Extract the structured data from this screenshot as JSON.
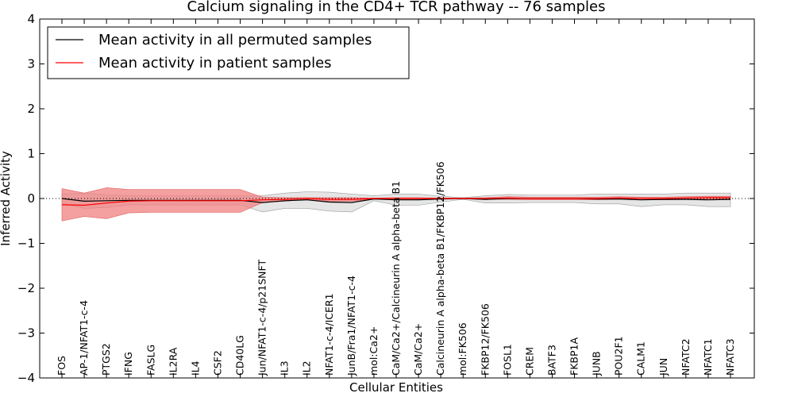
{
  "chart_data": {
    "type": "line",
    "title": "Calcium signaling in the CD4+ TCR pathway -- 76 samples",
    "xlabel": "Cellular Entities",
    "ylabel": "Inferred Activity",
    "ylim": [
      -4,
      4
    ],
    "yticks": [
      "−4",
      "−3",
      "−2",
      "−1",
      "0",
      "1",
      "2",
      "3",
      "4"
    ],
    "yticks_values": [
      -4,
      -3,
      -2,
      -1,
      0,
      1,
      2,
      3,
      4
    ],
    "legend_position": "top-left",
    "reference_line": 0,
    "categories": [
      "FOS",
      "AP-1/NFAT1-c-4",
      "PTGS2",
      "IFNG",
      "FASLG",
      "IL2RA",
      "IL4",
      "CSF2",
      "CD40LG",
      "Jun/NFAT1-c-4/p21SNFT",
      "IL3",
      "IL2",
      "NFAT1-c-4/ICER1",
      "JunB/Fra1/NFAT1-c-4",
      "mol:Ca2+",
      "CaM/Ca2+/Calcineurin A alpha-beta B1",
      "CaM/Ca2+",
      "Calcineurin A alpha-beta B1/FKBP12/FK506",
      "mol:FK506",
      "FKBP12/FK506",
      "FOSL1",
      "CREM",
      "BATF3",
      "FKBP1A",
      "JUNB",
      "POU2F1",
      "CALM1",
      "JUN",
      "NFATC2",
      "NFATC1",
      "NFATC3"
    ],
    "series": [
      {
        "name": "Mean activity in all permuted samples",
        "color": "#000000",
        "band_color": "#d3d3d3",
        "values": [
          0.0,
          -0.06,
          -0.05,
          -0.04,
          -0.04,
          -0.04,
          -0.04,
          -0.04,
          -0.04,
          -0.09,
          -0.05,
          -0.03,
          -0.08,
          -0.09,
          -0.01,
          -0.03,
          -0.03,
          -0.01,
          0.0,
          -0.02,
          0.0,
          0.0,
          0.0,
          0.0,
          -0.01,
          -0.01,
          -0.03,
          -0.02,
          -0.02,
          -0.03,
          -0.02
        ],
        "band_upper": [
          0.1,
          0.12,
          0.08,
          0.06,
          0.06,
          0.06,
          0.06,
          0.06,
          0.06,
          0.06,
          0.12,
          0.15,
          0.14,
          0.1,
          0.06,
          0.1,
          0.1,
          0.05,
          0.02,
          0.06,
          0.09,
          0.08,
          0.08,
          0.08,
          0.1,
          0.1,
          0.1,
          0.1,
          0.12,
          0.12,
          0.12
        ],
        "band_lower": [
          -0.1,
          -0.22,
          -0.2,
          -0.14,
          -0.14,
          -0.14,
          -0.14,
          -0.14,
          -0.14,
          -0.3,
          -0.22,
          -0.22,
          -0.28,
          -0.3,
          -0.05,
          -0.15,
          -0.15,
          -0.08,
          -0.02,
          -0.1,
          -0.1,
          -0.09,
          -0.09,
          -0.09,
          -0.12,
          -0.12,
          -0.18,
          -0.14,
          -0.14,
          -0.18,
          -0.18
        ]
      },
      {
        "name": "Mean activity in patient samples",
        "color": "#ff0000",
        "band_color": "#f08080",
        "values": [
          -0.14,
          -0.15,
          -0.1,
          -0.06,
          -0.05,
          -0.05,
          -0.05,
          -0.05,
          -0.05,
          -0.03,
          -0.02,
          0.0,
          -0.02,
          -0.02,
          0.0,
          0.0,
          0.0,
          0.0,
          0.0,
          0.0,
          0.01,
          0.0,
          0.0,
          0.0,
          0.0,
          0.01,
          0.0,
          0.0,
          0.01,
          0.02,
          0.02
        ],
        "band_upper": [
          0.22,
          0.12,
          0.24,
          0.2,
          0.2,
          0.2,
          0.2,
          0.2,
          0.2,
          0.03,
          0.02,
          0.02,
          0.02,
          0.02,
          0.01,
          0.02,
          0.02,
          0.01,
          0.01,
          0.02,
          0.04,
          0.03,
          0.03,
          0.03,
          0.03,
          0.04,
          0.03,
          0.03,
          0.04,
          0.05,
          0.05
        ],
        "band_lower": [
          -0.5,
          -0.4,
          -0.45,
          -0.32,
          -0.31,
          -0.31,
          -0.31,
          -0.31,
          -0.31,
          -0.09,
          -0.06,
          -0.02,
          -0.06,
          -0.06,
          -0.01,
          -0.02,
          -0.02,
          -0.01,
          -0.01,
          -0.02,
          -0.02,
          -0.03,
          -0.03,
          -0.03,
          -0.03,
          -0.02,
          -0.03,
          -0.03,
          -0.02,
          -0.01,
          -0.01
        ]
      }
    ]
  }
}
